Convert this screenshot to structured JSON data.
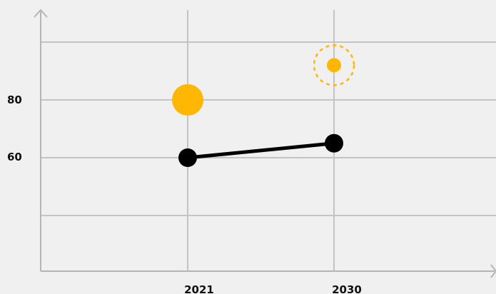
{
  "chart_data": {
    "type": "line",
    "title": "",
    "xlabel": "",
    "ylabel": "",
    "x_ticks": [
      "2021",
      "2030"
    ],
    "y_ticks": [
      "60",
      "80"
    ],
    "x_categories": [
      "2021",
      "2030"
    ],
    "ylim": [
      40,
      100
    ],
    "grid": true,
    "legend": "none",
    "series": [
      {
        "points": [
          {
            "x": "2021",
            "y": 60
          },
          {
            "x": "2030",
            "y": 65
          }
        ],
        "color": "#000000",
        "style": "solid-line-with-markers"
      },
      {
        "points": [
          {
            "x": "2021",
            "y": 80
          }
        ],
        "color": "#FFB703",
        "style": "large-filled-marker"
      },
      {
        "points": [
          {
            "x": "2030",
            "y": 92
          }
        ],
        "color": "#FFB703",
        "style": "small-marker-with-dashed-ring"
      }
    ]
  }
}
